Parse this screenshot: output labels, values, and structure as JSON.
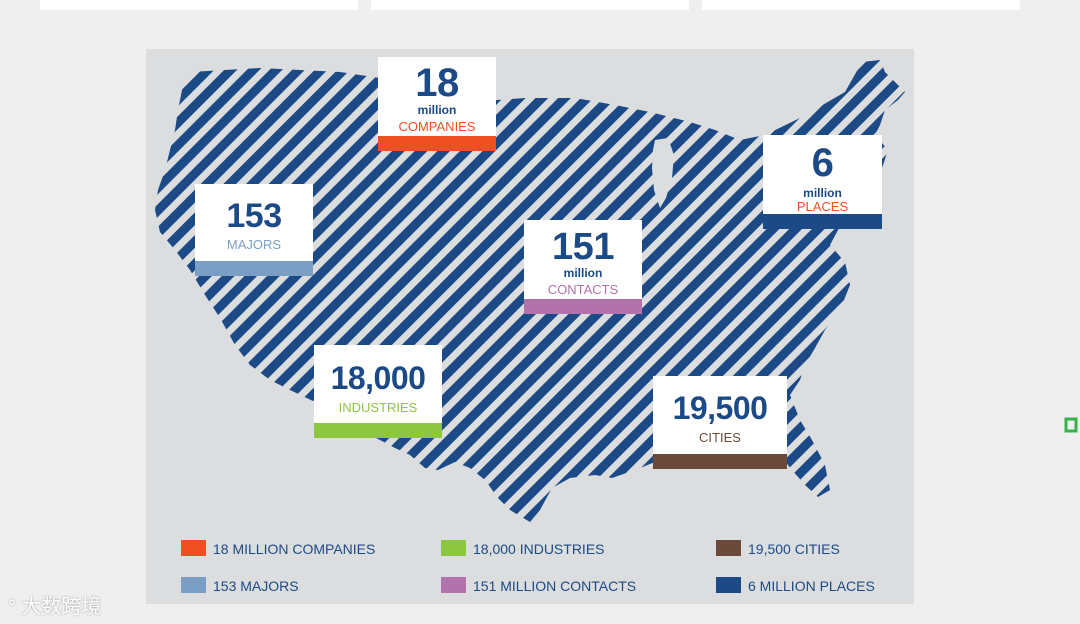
{
  "stats": [
    {
      "id": "companies",
      "number": "18",
      "unit": "million",
      "label": "COMPANIES",
      "color": "#f04e23"
    },
    {
      "id": "majors",
      "number": "153",
      "unit": "",
      "label": "MAJORS",
      "color": "#7b9fc4"
    },
    {
      "id": "contacts",
      "number": "151",
      "unit": "million",
      "label": "CONTACTS",
      "color": "#b272aa"
    },
    {
      "id": "places",
      "number": "6",
      "unit": "million",
      "label": "PLACES",
      "color": "#1b4a86"
    },
    {
      "id": "industries",
      "number": "18,000",
      "unit": "",
      "label": "INDUSTRIES",
      "color": "#8dc63f"
    },
    {
      "id": "cities",
      "number": "19,500",
      "unit": "",
      "label": "CITIES",
      "color": "#6b4a3a"
    }
  ],
  "legend": [
    {
      "text": "18 MILLION COMPANIES",
      "color": "#f04e23"
    },
    {
      "text": "18,000 INDUSTRIES",
      "color": "#8dc63f"
    },
    {
      "text": "19,500 CITIES",
      "color": "#6b4a3a"
    },
    {
      "text": "153 MAJORS",
      "color": "#7b9fc4"
    },
    {
      "text": "151 MILLION CONTACTS",
      "color": "#b272aa"
    },
    {
      "text": "6 MILLION PLACES",
      "color": "#1b4a86"
    }
  ],
  "watermark": "大数跨境",
  "colors": {
    "map_stripe": "#1b4a86",
    "panel_bg": "#dcdddf",
    "page_bg": "#efefef"
  }
}
